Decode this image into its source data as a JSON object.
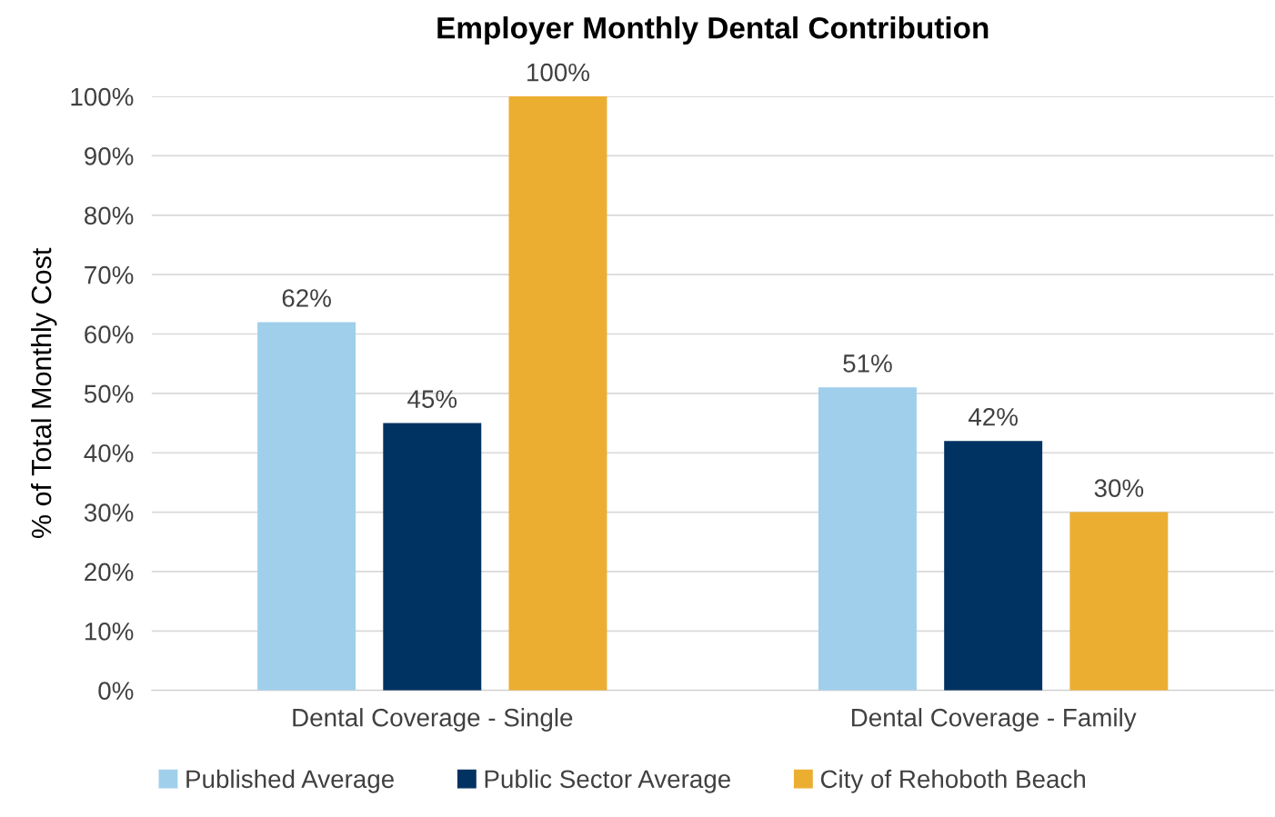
{
  "chart_data": {
    "type": "bar",
    "title": "Employer Monthly Dental Contribution",
    "ylabel": "% of Total Monthly Cost",
    "categories": [
      "Dental Coverage - Single",
      "Dental Coverage - Family"
    ],
    "series": [
      {
        "name": "Published Average",
        "color": "#a0cfeb",
        "values": [
          62,
          51
        ],
        "value_labels": [
          "62%",
          "51%"
        ]
      },
      {
        "name": "Public Sector Average",
        "color": "#003361",
        "values": [
          45,
          42
        ],
        "value_labels": [
          "45%",
          "42%"
        ]
      },
      {
        "name": "City of Rehoboth Beach",
        "color": "#ecae31",
        "values": [
          100,
          30
        ],
        "value_labels": [
          "100%",
          "30%"
        ]
      }
    ],
    "ylim": [
      0,
      100
    ],
    "yticks": [
      {
        "value": 0,
        "label": "0%"
      },
      {
        "value": 10,
        "label": "10%"
      },
      {
        "value": 20,
        "label": "20%"
      },
      {
        "value": 30,
        "label": "30%"
      },
      {
        "value": 40,
        "label": "40%"
      },
      {
        "value": 50,
        "label": "50%"
      },
      {
        "value": 60,
        "label": "60%"
      },
      {
        "value": 70,
        "label": "70%"
      },
      {
        "value": 80,
        "label": "80%"
      },
      {
        "value": 90,
        "label": "90%"
      },
      {
        "value": 100,
        "label": "100%"
      }
    ],
    "grid": "y",
    "legend": "bottom"
  }
}
